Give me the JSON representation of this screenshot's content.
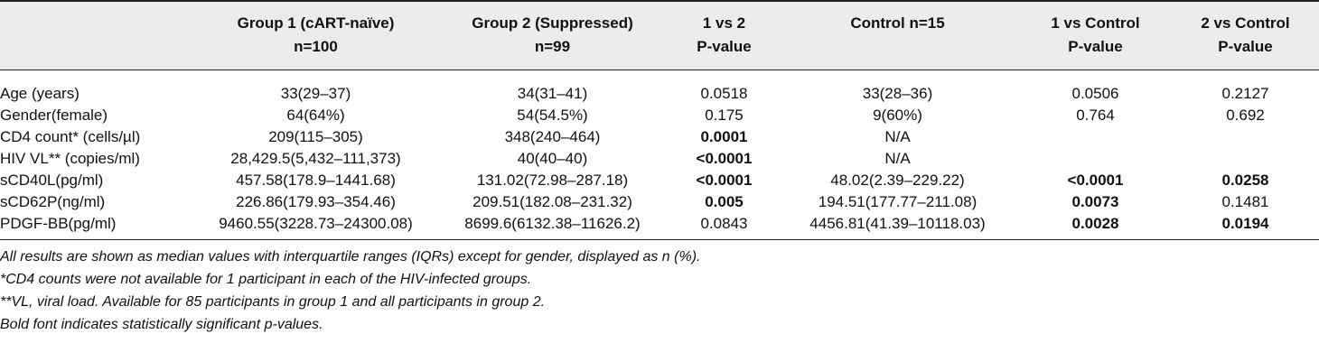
{
  "headers": [
    {
      "lines": [
        "",
        ""
      ]
    },
    {
      "lines": [
        "Group 1 (cART-naïve)",
        "n=100"
      ]
    },
    {
      "lines": [
        "Group 2 (Suppressed)",
        "n=99"
      ]
    },
    {
      "lines": [
        "1 vs 2",
        "P-value"
      ]
    },
    {
      "lines": [
        "Control n=15",
        ""
      ]
    },
    {
      "lines": [
        "1 vs Control",
        "P-value"
      ]
    },
    {
      "lines": [
        "2 vs Control",
        "P-value"
      ]
    }
  ],
  "rows": [
    {
      "label": "Age (years)",
      "cells": [
        {
          "text": "33(29–37)",
          "bold": false
        },
        {
          "text": "34(31–41)",
          "bold": false
        },
        {
          "text": "0.0518",
          "bold": false
        },
        {
          "text": "33(28–36)",
          "bold": false
        },
        {
          "text": "0.0506",
          "bold": false
        },
        {
          "text": "0.2127",
          "bold": false
        }
      ]
    },
    {
      "label": "Gender(female)",
      "cells": [
        {
          "text": "64(64%)",
          "bold": false
        },
        {
          "text": "54(54.5%)",
          "bold": false
        },
        {
          "text": "0.175",
          "bold": false
        },
        {
          "text": "9(60%)",
          "bold": false
        },
        {
          "text": "0.764",
          "bold": false
        },
        {
          "text": "0.692",
          "bold": false
        }
      ]
    },
    {
      "label": "CD4 count* (cells/µl)",
      "cells": [
        {
          "text": "209(115–305)",
          "bold": false
        },
        {
          "text": "348(240–464)",
          "bold": false
        },
        {
          "text": "0.0001",
          "bold": true
        },
        {
          "text": "N/A",
          "bold": false
        },
        {
          "text": "",
          "bold": false
        },
        {
          "text": "",
          "bold": false
        }
      ]
    },
    {
      "label": "HIV VL** (copies/ml)",
      "cells": [
        {
          "text": "28,429.5(5,432–111,373)",
          "bold": false
        },
        {
          "text": "40(40–40)",
          "bold": false
        },
        {
          "text": "<0.0001",
          "bold": true
        },
        {
          "text": "N/A",
          "bold": false
        },
        {
          "text": "",
          "bold": false
        },
        {
          "text": "",
          "bold": false
        }
      ]
    },
    {
      "label": "sCD40L(pg/ml)",
      "cells": [
        {
          "text": "457.58(178.9–1441.68)",
          "bold": false
        },
        {
          "text": "131.02(72.98–287.18)",
          "bold": false
        },
        {
          "text": "<0.0001",
          "bold": true
        },
        {
          "text": "48.02(2.39–229.22)",
          "bold": false
        },
        {
          "text": "<0.0001",
          "bold": true
        },
        {
          "text": "0.0258",
          "bold": true
        }
      ]
    },
    {
      "label": "sCD62P(ng/ml)",
      "cells": [
        {
          "text": "226.86(179.93–354.46)",
          "bold": false
        },
        {
          "text": "209.51(182.08–231.32)",
          "bold": false
        },
        {
          "text": "0.005",
          "bold": true
        },
        {
          "text": "194.51(177.77–211.08)",
          "bold": false
        },
        {
          "text": "0.0073",
          "bold": true
        },
        {
          "text": "0.1481",
          "bold": false
        }
      ]
    },
    {
      "label": "PDGF-BB(pg/ml)",
      "cells": [
        {
          "text": "9460.55(3228.73–24300.08)",
          "bold": false
        },
        {
          "text": "8699.6(6132.38–11626.2)",
          "bold": false
        },
        {
          "text": "0.0843",
          "bold": false
        },
        {
          "text": "4456.81(41.39–10118.03)",
          "bold": false
        },
        {
          "text": "0.0028",
          "bold": true
        },
        {
          "text": "0.0194",
          "bold": true
        }
      ]
    }
  ],
  "notes": [
    "All results are shown as median values with interquartile ranges (IQRs) except for gender, displayed as n (%).",
    "*CD4 counts were not available for 1 participant in each of the HIV-infected groups.",
    "**VL, viral load. Available for 85 participants in group 1 and all participants in group 2.",
    "Bold font indicates statistically significant p-values."
  ]
}
